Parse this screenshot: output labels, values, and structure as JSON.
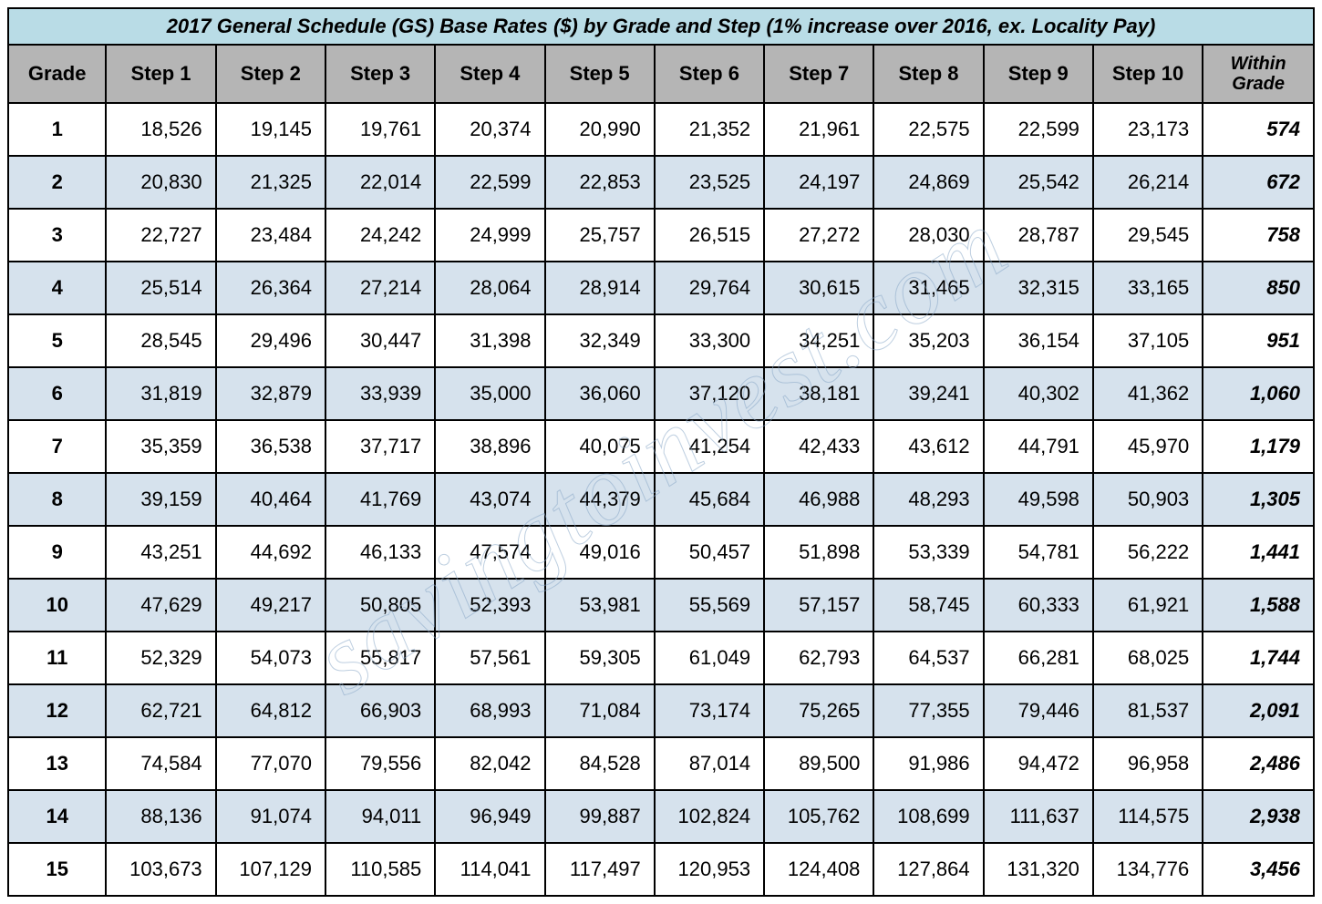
{
  "title": "2017 General Schedule (GS) Base Rates ($) by Grade and Step (1% increase over 2016, ex. Locality Pay)",
  "columns": [
    "Grade",
    "Step 1",
    "Step 2",
    "Step 3",
    "Step 4",
    "Step 5",
    "Step 6",
    "Step 7",
    "Step 8",
    "Step 9",
    "Step 10",
    "Within Grade"
  ],
  "col_widths_pct": [
    7.5,
    8.4,
    8.4,
    8.4,
    8.4,
    8.4,
    8.4,
    8.4,
    8.4,
    8.4,
    8.4,
    8.5
  ],
  "rows": [
    {
      "grade": "1",
      "steps": [
        "18,526",
        "19,145",
        "19,761",
        "20,374",
        "20,990",
        "21,352",
        "21,961",
        "22,575",
        "22,599",
        "23,173"
      ],
      "within": "574"
    },
    {
      "grade": "2",
      "steps": [
        "20,830",
        "21,325",
        "22,014",
        "22,599",
        "22,853",
        "23,525",
        "24,197",
        "24,869",
        "25,542",
        "26,214"
      ],
      "within": "672"
    },
    {
      "grade": "3",
      "steps": [
        "22,727",
        "23,484",
        "24,242",
        "24,999",
        "25,757",
        "26,515",
        "27,272",
        "28,030",
        "28,787",
        "29,545"
      ],
      "within": "758"
    },
    {
      "grade": "4",
      "steps": [
        "25,514",
        "26,364",
        "27,214",
        "28,064",
        "28,914",
        "29,764",
        "30,615",
        "31,465",
        "32,315",
        "33,165"
      ],
      "within": "850"
    },
    {
      "grade": "5",
      "steps": [
        "28,545",
        "29,496",
        "30,447",
        "31,398",
        "32,349",
        "33,300",
        "34,251",
        "35,203",
        "36,154",
        "37,105"
      ],
      "within": "951"
    },
    {
      "grade": "6",
      "steps": [
        "31,819",
        "32,879",
        "33,939",
        "35,000",
        "36,060",
        "37,120",
        "38,181",
        "39,241",
        "40,302",
        "41,362"
      ],
      "within": "1,060"
    },
    {
      "grade": "7",
      "steps": [
        "35,359",
        "36,538",
        "37,717",
        "38,896",
        "40,075",
        "41,254",
        "42,433",
        "43,612",
        "44,791",
        "45,970"
      ],
      "within": "1,179"
    },
    {
      "grade": "8",
      "steps": [
        "39,159",
        "40,464",
        "41,769",
        "43,074",
        "44,379",
        "45,684",
        "46,988",
        "48,293",
        "49,598",
        "50,903"
      ],
      "within": "1,305"
    },
    {
      "grade": "9",
      "steps": [
        "43,251",
        "44,692",
        "46,133",
        "47,574",
        "49,016",
        "50,457",
        "51,898",
        "53,339",
        "54,781",
        "56,222"
      ],
      "within": "1,441"
    },
    {
      "grade": "10",
      "steps": [
        "47,629",
        "49,217",
        "50,805",
        "52,393",
        "53,981",
        "55,569",
        "57,157",
        "58,745",
        "60,333",
        "61,921"
      ],
      "within": "1,588"
    },
    {
      "grade": "11",
      "steps": [
        "52,329",
        "54,073",
        "55,817",
        "57,561",
        "59,305",
        "61,049",
        "62,793",
        "64,537",
        "66,281",
        "68,025"
      ],
      "within": "1,744"
    },
    {
      "grade": "12",
      "steps": [
        "62,721",
        "64,812",
        "66,903",
        "68,993",
        "71,084",
        "73,174",
        "75,265",
        "77,355",
        "79,446",
        "81,537"
      ],
      "within": "2,091"
    },
    {
      "grade": "13",
      "steps": [
        "74,584",
        "77,070",
        "79,556",
        "82,042",
        "84,528",
        "87,014",
        "89,500",
        "91,986",
        "94,472",
        "96,958"
      ],
      "within": "2,486"
    },
    {
      "grade": "14",
      "steps": [
        "88,136",
        "91,074",
        "94,011",
        "96,949",
        "99,887",
        "102,824",
        "105,762",
        "108,699",
        "111,637",
        "114,575"
      ],
      "within": "2,938"
    },
    {
      "grade": "15",
      "steps": [
        "103,673",
        "107,129",
        "110,585",
        "114,041",
        "117,497",
        "120,953",
        "124,408",
        "127,864",
        "131,320",
        "134,776"
      ],
      "within": "3,456"
    }
  ],
  "colors": {
    "title_bg": "#b9dce6",
    "header_bg": "#b5b5b5",
    "row_even_bg": "#d6e2ed",
    "row_odd_bg": "#ffffff",
    "border": "#000000",
    "text": "#000000",
    "watermark_stroke": "#8aa8c8"
  },
  "typography": {
    "title_fontsize": 22,
    "header_fontsize": 22,
    "cell_fontsize": 22,
    "font_family": "Arial"
  },
  "watermark": "savingtoinvest.com"
}
